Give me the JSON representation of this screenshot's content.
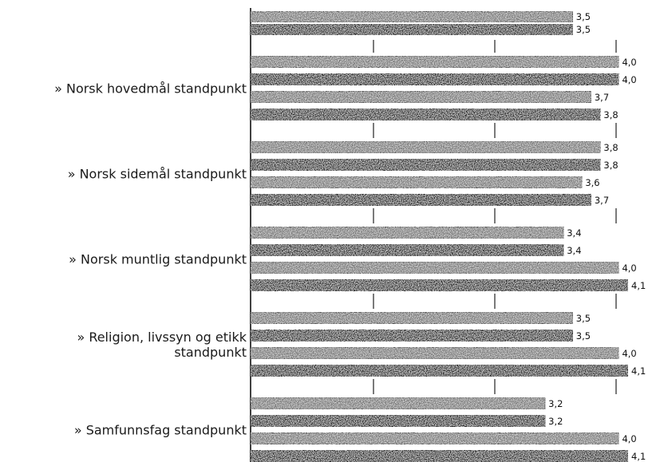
{
  "chart_data": {
    "type": "bar",
    "orientation": "horizontal",
    "title": "",
    "xlabel": "",
    "ylabel": "",
    "xlim": [
      0,
      4.1
    ],
    "grid": true,
    "legend": "none",
    "partial_top_bars": [
      {
        "value": 3.5,
        "label": "3,5",
        "color": "#6e6e6e"
      },
      {
        "value": 3.5,
        "label": "3,5",
        "color": "#141414"
      }
    ],
    "categories": [
      "» Norsk hovedmål standpunkt",
      "» Norsk sidemål standpunkt",
      "» Norsk muntlig standpunkt",
      "» Religion, livssyn og etikk standpunkt",
      "» Samfunnsfag standpunkt"
    ],
    "category_lines": [
      [
        "» Norsk hovedmål standpunkt"
      ],
      [
        "» Norsk sidemål standpunkt"
      ],
      [
        "» Norsk muntlig standpunkt"
      ],
      [
        "» Religion, livssyn og etikk",
        "standpunkt"
      ],
      [
        "» Samfunnsfag standpunkt"
      ]
    ],
    "series_colors": [
      "#6e6e6e",
      "#141414",
      "#6e6e6e",
      "#141414"
    ],
    "series": [
      {
        "values": [
          4.0,
          3.8,
          3.4,
          3.5,
          3.2
        ],
        "labels": [
          "4,0",
          "3,8",
          "3,4",
          "3,5",
          "3,2"
        ]
      },
      {
        "values": [
          4.0,
          3.8,
          3.4,
          3.5,
          3.2
        ],
        "labels": [
          "4,0",
          "3,8",
          "3,4",
          "3,5",
          "3,2"
        ]
      },
      {
        "values": [
          3.7,
          3.6,
          4.0,
          4.0,
          4.0
        ],
        "labels": [
          "3,7",
          "3,6",
          "4,0",
          "4,0",
          "4,0"
        ]
      },
      {
        "values": [
          3.8,
          3.7,
          4.1,
          4.1,
          4.1
        ],
        "labels": [
          "3,8",
          "3,7",
          "4,1",
          "4,1",
          "4,1"
        ]
      }
    ]
  }
}
